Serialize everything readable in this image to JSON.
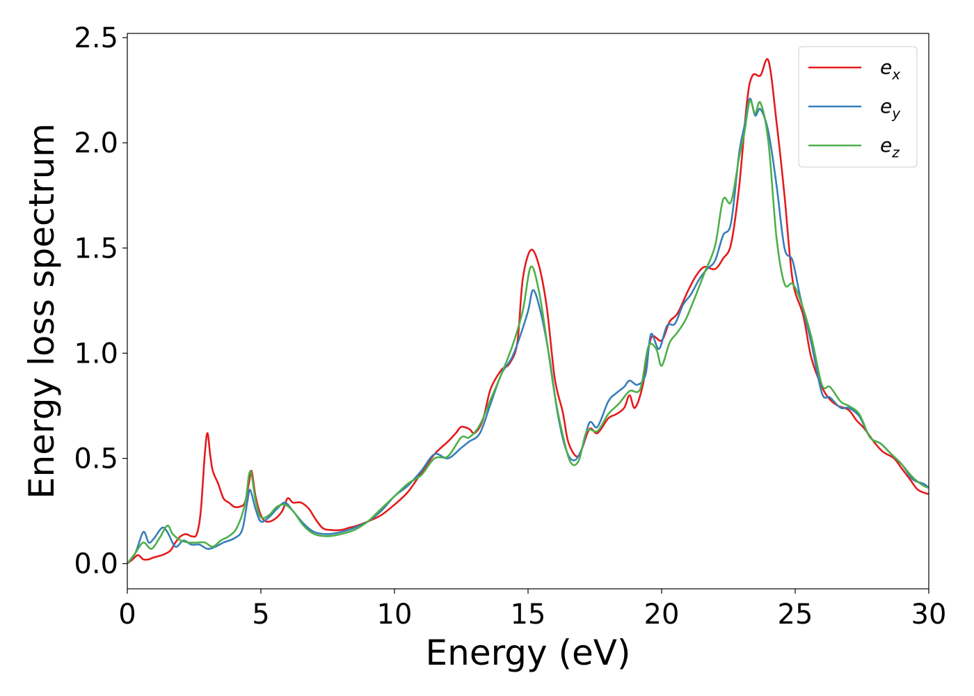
{
  "chart_data": {
    "type": "line",
    "title": "",
    "xlabel": "Energy (eV)",
    "ylabel": "Energy loss spectrum",
    "xlim": [
      0,
      30
    ],
    "ylim": [
      -0.12,
      2.52
    ],
    "xticks": [
      0,
      5,
      10,
      15,
      20,
      25,
      30
    ],
    "yticks": [
      0.0,
      0.5,
      1.0,
      1.5,
      2.0,
      2.5
    ],
    "xtick_labels": [
      "0",
      "5",
      "10",
      "15",
      "20",
      "25",
      "30"
    ],
    "ytick_labels": [
      "0.0",
      "0.5",
      "1.0",
      "1.5",
      "2.0",
      "2.5"
    ],
    "grid": false,
    "legend_position": "top-right",
    "series": [
      {
        "name": "e_x",
        "label_base": "e",
        "label_sub": "x",
        "color": "#e41a1c",
        "points": [
          [
            0,
            0
          ],
          [
            0.2,
            0.02
          ],
          [
            0.4,
            0.04
          ],
          [
            0.6,
            0.02
          ],
          [
            0.8,
            0.02
          ],
          [
            1,
            0.03
          ],
          [
            1.3,
            0.04
          ],
          [
            1.6,
            0.06
          ],
          [
            1.8,
            0.1
          ],
          [
            2.0,
            0.13
          ],
          [
            2.2,
            0.14
          ],
          [
            2.4,
            0.13
          ],
          [
            2.6,
            0.14
          ],
          [
            2.75,
            0.25
          ],
          [
            2.9,
            0.52
          ],
          [
            3.0,
            0.62
          ],
          [
            3.1,
            0.52
          ],
          [
            3.2,
            0.44
          ],
          [
            3.4,
            0.38
          ],
          [
            3.6,
            0.31
          ],
          [
            3.8,
            0.29
          ],
          [
            4.0,
            0.27
          ],
          [
            4.2,
            0.27
          ],
          [
            4.4,
            0.29
          ],
          [
            4.55,
            0.38
          ],
          [
            4.65,
            0.44
          ],
          [
            4.8,
            0.32
          ],
          [
            5.0,
            0.23
          ],
          [
            5.2,
            0.2
          ],
          [
            5.5,
            0.21
          ],
          [
            5.8,
            0.25
          ],
          [
            6.0,
            0.31
          ],
          [
            6.2,
            0.29
          ],
          [
            6.5,
            0.29
          ],
          [
            6.8,
            0.26
          ],
          [
            7.0,
            0.22
          ],
          [
            7.3,
            0.17
          ],
          [
            7.6,
            0.16
          ],
          [
            8.0,
            0.16
          ],
          [
            8.3,
            0.17
          ],
          [
            8.6,
            0.18
          ],
          [
            9.0,
            0.2
          ],
          [
            9.5,
            0.23
          ],
          [
            10.0,
            0.28
          ],
          [
            10.5,
            0.34
          ],
          [
            11.0,
            0.43
          ],
          [
            11.5,
            0.52
          ],
          [
            12.0,
            0.58
          ],
          [
            12.3,
            0.62
          ],
          [
            12.5,
            0.65
          ],
          [
            12.8,
            0.64
          ],
          [
            13.0,
            0.62
          ],
          [
            13.3,
            0.68
          ],
          [
            13.6,
            0.83
          ],
          [
            14.0,
            0.92
          ],
          [
            14.3,
            0.95
          ],
          [
            14.6,
            1.05
          ],
          [
            14.8,
            1.35
          ],
          [
            15.1,
            1.49
          ],
          [
            15.4,
            1.42
          ],
          [
            15.7,
            1.22
          ],
          [
            16.0,
            0.88
          ],
          [
            16.3,
            0.72
          ],
          [
            16.5,
            0.58
          ],
          [
            16.8,
            0.51
          ],
          [
            17.0,
            0.54
          ],
          [
            17.3,
            0.64
          ],
          [
            17.6,
            0.62
          ],
          [
            18.0,
            0.69
          ],
          [
            18.3,
            0.71
          ],
          [
            18.6,
            0.74
          ],
          [
            18.8,
            0.8
          ],
          [
            19.0,
            0.74
          ],
          [
            19.3,
            0.85
          ],
          [
            19.6,
            1.07
          ],
          [
            20.0,
            1.06
          ],
          [
            20.3,
            1.15
          ],
          [
            20.6,
            1.19
          ],
          [
            21.0,
            1.3
          ],
          [
            21.3,
            1.37
          ],
          [
            21.6,
            1.41
          ],
          [
            22.0,
            1.4
          ],
          [
            22.3,
            1.45
          ],
          [
            22.6,
            1.52
          ],
          [
            22.9,
            1.79
          ],
          [
            23.2,
            2.2
          ],
          [
            23.4,
            2.32
          ],
          [
            23.7,
            2.32
          ],
          [
            24.0,
            2.39
          ],
          [
            24.3,
            2.1
          ],
          [
            24.6,
            1.75
          ],
          [
            24.9,
            1.35
          ],
          [
            25.3,
            1.18
          ],
          [
            25.6,
            0.98
          ],
          [
            26.0,
            0.84
          ],
          [
            26.3,
            0.78
          ],
          [
            26.6,
            0.75
          ],
          [
            27.0,
            0.73
          ],
          [
            27.3,
            0.68
          ],
          [
            27.6,
            0.64
          ],
          [
            28.0,
            0.57
          ],
          [
            28.3,
            0.53
          ],
          [
            28.7,
            0.5
          ],
          [
            29.0,
            0.45
          ],
          [
            29.3,
            0.4
          ],
          [
            29.6,
            0.35
          ],
          [
            30.0,
            0.33
          ]
        ]
      },
      {
        "name": "e_y",
        "label_base": "e",
        "label_sub": "y",
        "color": "#377eb8",
        "points": [
          [
            0,
            0
          ],
          [
            0.3,
            0.05
          ],
          [
            0.6,
            0.15
          ],
          [
            0.8,
            0.1
          ],
          [
            1.0,
            0.12
          ],
          [
            1.3,
            0.17
          ],
          [
            1.5,
            0.15
          ],
          [
            1.8,
            0.08
          ],
          [
            2.1,
            0.11
          ],
          [
            2.4,
            0.09
          ],
          [
            2.7,
            0.09
          ],
          [
            3.0,
            0.07
          ],
          [
            3.3,
            0.08
          ],
          [
            3.6,
            0.1
          ],
          [
            4.0,
            0.12
          ],
          [
            4.3,
            0.16
          ],
          [
            4.5,
            0.3
          ],
          [
            4.6,
            0.35
          ],
          [
            4.8,
            0.26
          ],
          [
            5.0,
            0.2
          ],
          [
            5.3,
            0.22
          ],
          [
            5.6,
            0.26
          ],
          [
            5.9,
            0.29
          ],
          [
            6.2,
            0.25
          ],
          [
            6.6,
            0.19
          ],
          [
            7.0,
            0.15
          ],
          [
            7.5,
            0.14
          ],
          [
            8.0,
            0.15
          ],
          [
            8.5,
            0.17
          ],
          [
            9.0,
            0.2
          ],
          [
            9.5,
            0.25
          ],
          [
            10.0,
            0.32
          ],
          [
            10.5,
            0.37
          ],
          [
            11.0,
            0.44
          ],
          [
            11.5,
            0.52
          ],
          [
            12.0,
            0.5
          ],
          [
            12.5,
            0.55
          ],
          [
            12.8,
            0.58
          ],
          [
            13.2,
            0.62
          ],
          [
            13.6,
            0.76
          ],
          [
            14.0,
            0.9
          ],
          [
            14.4,
            0.98
          ],
          [
            14.7,
            1.08
          ],
          [
            15.0,
            1.2
          ],
          [
            15.2,
            1.3
          ],
          [
            15.5,
            1.18
          ],
          [
            15.8,
            0.98
          ],
          [
            16.1,
            0.72
          ],
          [
            16.4,
            0.55
          ],
          [
            16.7,
            0.49
          ],
          [
            17.0,
            0.54
          ],
          [
            17.3,
            0.67
          ],
          [
            17.6,
            0.65
          ],
          [
            18.0,
            0.77
          ],
          [
            18.3,
            0.81
          ],
          [
            18.6,
            0.84
          ],
          [
            18.8,
            0.87
          ],
          [
            19.1,
            0.85
          ],
          [
            19.4,
            0.9
          ],
          [
            19.6,
            1.09
          ],
          [
            19.9,
            1.02
          ],
          [
            20.2,
            1.13
          ],
          [
            20.5,
            1.14
          ],
          [
            20.8,
            1.23
          ],
          [
            21.1,
            1.28
          ],
          [
            21.4,
            1.35
          ],
          [
            21.7,
            1.4
          ],
          [
            22.0,
            1.44
          ],
          [
            22.3,
            1.56
          ],
          [
            22.6,
            1.62
          ],
          [
            22.9,
            1.95
          ],
          [
            23.1,
            2.08
          ],
          [
            23.3,
            2.21
          ],
          [
            23.5,
            2.13
          ],
          [
            23.7,
            2.16
          ],
          [
            24.0,
            2.05
          ],
          [
            24.3,
            1.8
          ],
          [
            24.6,
            1.5
          ],
          [
            24.9,
            1.44
          ],
          [
            25.2,
            1.26
          ],
          [
            25.6,
            1.05
          ],
          [
            26.0,
            0.81
          ],
          [
            26.3,
            0.79
          ],
          [
            26.7,
            0.74
          ],
          [
            27.0,
            0.74
          ],
          [
            27.4,
            0.7
          ],
          [
            27.8,
            0.6
          ],
          [
            28.2,
            0.57
          ],
          [
            28.6,
            0.52
          ],
          [
            29.0,
            0.47
          ],
          [
            29.4,
            0.4
          ],
          [
            29.8,
            0.38
          ],
          [
            30.0,
            0.36
          ]
        ]
      },
      {
        "name": "e_z",
        "label_base": "e",
        "label_sub": "z",
        "color": "#4daf4a",
        "points": [
          [
            0,
            0
          ],
          [
            0.3,
            0.05
          ],
          [
            0.6,
            0.1
          ],
          [
            0.9,
            0.07
          ],
          [
            1.2,
            0.12
          ],
          [
            1.5,
            0.18
          ],
          [
            1.7,
            0.14
          ],
          [
            2.0,
            0.11
          ],
          [
            2.3,
            0.1
          ],
          [
            2.6,
            0.1
          ],
          [
            2.9,
            0.1
          ],
          [
            3.2,
            0.08
          ],
          [
            3.5,
            0.11
          ],
          [
            3.8,
            0.13
          ],
          [
            4.1,
            0.17
          ],
          [
            4.4,
            0.28
          ],
          [
            4.6,
            0.44
          ],
          [
            4.8,
            0.3
          ],
          [
            5.0,
            0.22
          ],
          [
            5.3,
            0.23
          ],
          [
            5.6,
            0.27
          ],
          [
            5.9,
            0.28
          ],
          [
            6.2,
            0.25
          ],
          [
            6.6,
            0.18
          ],
          [
            7.0,
            0.14
          ],
          [
            7.5,
            0.13
          ],
          [
            8.0,
            0.14
          ],
          [
            8.5,
            0.16
          ],
          [
            9.0,
            0.2
          ],
          [
            9.5,
            0.26
          ],
          [
            10.0,
            0.32
          ],
          [
            10.5,
            0.38
          ],
          [
            11.0,
            0.42
          ],
          [
            11.5,
            0.5
          ],
          [
            12.0,
            0.51
          ],
          [
            12.5,
            0.6
          ],
          [
            12.8,
            0.6
          ],
          [
            13.2,
            0.66
          ],
          [
            13.6,
            0.78
          ],
          [
            14.0,
            0.9
          ],
          [
            14.4,
            1.03
          ],
          [
            14.8,
            1.2
          ],
          [
            15.1,
            1.41
          ],
          [
            15.4,
            1.3
          ],
          [
            15.7,
            1.06
          ],
          [
            16.0,
            0.8
          ],
          [
            16.3,
            0.61
          ],
          [
            16.6,
            0.48
          ],
          [
            16.9,
            0.49
          ],
          [
            17.2,
            0.63
          ],
          [
            17.6,
            0.63
          ],
          [
            18.0,
            0.71
          ],
          [
            18.4,
            0.76
          ],
          [
            18.8,
            0.82
          ],
          [
            19.2,
            0.83
          ],
          [
            19.5,
            1.03
          ],
          [
            19.8,
            1.02
          ],
          [
            20.0,
            0.94
          ],
          [
            20.3,
            1.05
          ],
          [
            20.6,
            1.1
          ],
          [
            20.9,
            1.16
          ],
          [
            21.2,
            1.25
          ],
          [
            21.6,
            1.38
          ],
          [
            22.0,
            1.51
          ],
          [
            22.3,
            1.73
          ],
          [
            22.6,
            1.72
          ],
          [
            22.9,
            1.93
          ],
          [
            23.1,
            2.05
          ],
          [
            23.3,
            2.2
          ],
          [
            23.5,
            2.14
          ],
          [
            23.7,
            2.19
          ],
          [
            24.0,
            2.0
          ],
          [
            24.3,
            1.55
          ],
          [
            24.6,
            1.33
          ],
          [
            24.9,
            1.33
          ],
          [
            25.2,
            1.25
          ],
          [
            25.6,
            1.08
          ],
          [
            26.0,
            0.85
          ],
          [
            26.3,
            0.84
          ],
          [
            26.7,
            0.77
          ],
          [
            27.0,
            0.75
          ],
          [
            27.4,
            0.71
          ],
          [
            27.8,
            0.6
          ],
          [
            28.2,
            0.57
          ],
          [
            28.6,
            0.52
          ],
          [
            29.0,
            0.47
          ],
          [
            29.4,
            0.41
          ],
          [
            29.8,
            0.37
          ],
          [
            30.0,
            0.36
          ]
        ]
      }
    ]
  }
}
